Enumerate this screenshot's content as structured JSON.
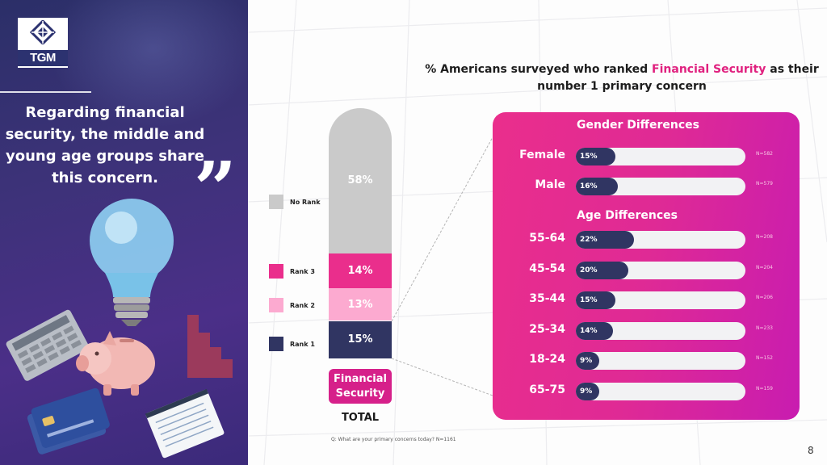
{
  "left_panel": {
    "logo_text": "TGM",
    "quote": "Regarding financial security, the middle and young age groups share this concern.",
    "quote_mark": "”"
  },
  "chart_title": {
    "prefix": "% Americans surveyed who ranked ",
    "highlight": "Financial Security",
    "suffix": " as their number 1 primary concern"
  },
  "colors": {
    "no_rank": "#cacaca",
    "rank3": "#ea2e8c",
    "rank2": "#fcaad0",
    "rank1": "#303562",
    "accent": "#e0217f"
  },
  "chart_data": [
    {
      "type": "bar",
      "subtype": "stacked",
      "categories": [
        "Financial Security"
      ],
      "series": [
        {
          "name": "Rank 1",
          "values": [
            15
          ],
          "label": "15%"
        },
        {
          "name": "Rank 2",
          "values": [
            13
          ],
          "label": "13%"
        },
        {
          "name": "Rank 3",
          "values": [
            14
          ],
          "label": "14%"
        },
        {
          "name": "No Rank",
          "values": [
            58
          ],
          "label": "58%"
        }
      ],
      "xlabel": "TOTAL",
      "legend": [
        "No Rank",
        "Rank 3",
        "Rank 2",
        "Rank 1"
      ],
      "footnote": "Q: What are your primary concerns today? N=1161"
    },
    {
      "type": "bar",
      "subtype": "horizontal",
      "title": "Gender Differences",
      "categories": [
        "Female",
        "Male"
      ],
      "values": [
        15,
        16
      ],
      "labels": [
        "15%",
        "16%"
      ],
      "n": [
        "N=582",
        "N=579"
      ],
      "xlim": [
        0,
        100
      ]
    },
    {
      "type": "bar",
      "subtype": "horizontal",
      "title": "Age Differences",
      "categories": [
        "55-64",
        "45-54",
        "35-44",
        "25-34",
        "18-24",
        "65-75"
      ],
      "values": [
        22,
        20,
        15,
        14,
        9,
        9
      ],
      "labels": [
        "22%",
        "20%",
        "15%",
        "14%",
        "9%",
        "9%"
      ],
      "n": [
        "N=208",
        "N=204",
        "N=206",
        "N=233",
        "N=152",
        "N=159"
      ],
      "xlim": [
        0,
        100
      ]
    }
  ],
  "page_number": "8"
}
